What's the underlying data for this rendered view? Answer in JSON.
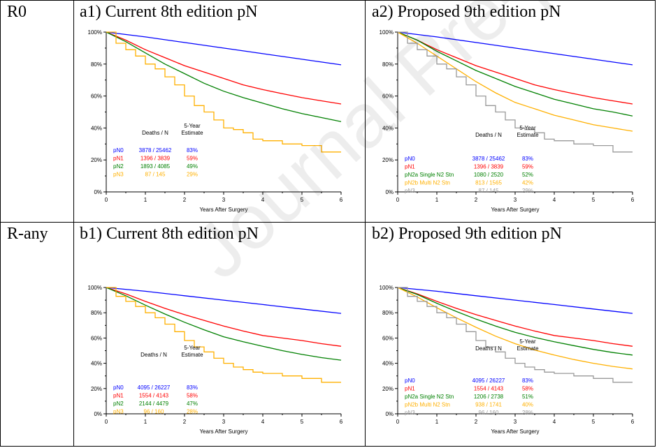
{
  "rows": [
    {
      "label": "R0"
    },
    {
      "label": "R-any"
    }
  ],
  "watermark": "Journal Pre-proof",
  "table_headers": {
    "deaths": "Deaths / N",
    "estimate_line1": "5-Year",
    "estimate_line2": "Estimate"
  },
  "colors": {
    "blue": "#0000ff",
    "red": "#ff0000",
    "green": "#008000",
    "orange": "#ffb000",
    "gray": "#999999"
  },
  "chart_data": [
    {
      "id": "a1",
      "type": "line",
      "title": "a1) Current 8th edition pN",
      "xlabel": "Years After Surgery",
      "ylabel": "",
      "xlim": [
        0,
        6
      ],
      "ylim": [
        0,
        100
      ],
      "xticks": [
        "0",
        "1",
        "2",
        "3",
        "4",
        "5",
        "6"
      ],
      "yticks": [
        "0%",
        "20%",
        "40%",
        "60%",
        "80%",
        "100%"
      ],
      "series": [
        {
          "name": "pN0",
          "color": "#0000ff",
          "deaths_n": "3878 / 25462",
          "estimate": "83%",
          "step": false,
          "x": [
            0,
            1,
            2,
            3,
            4,
            5,
            6
          ],
          "y": [
            100,
            97,
            93.5,
            90,
            86.5,
            83,
            79.5
          ]
        },
        {
          "name": "pN1",
          "color": "#ff0000",
          "deaths_n": "1396 / 3839",
          "estimate": "59%",
          "step": false,
          "x": [
            0,
            0.5,
            1,
            1.5,
            2,
            2.5,
            3,
            3.5,
            4,
            4.5,
            5,
            5.5,
            6
          ],
          "y": [
            100,
            95,
            89,
            84,
            79,
            75,
            71,
            67,
            64,
            61.5,
            59,
            57,
            55
          ]
        },
        {
          "name": "pN2",
          "color": "#008000",
          "deaths_n": "1893 / 4085",
          "estimate": "49%",
          "step": false,
          "x": [
            0,
            0.5,
            1,
            1.5,
            2,
            2.5,
            3,
            3.5,
            4,
            4.5,
            5,
            5.5,
            6
          ],
          "y": [
            100,
            94,
            87,
            80,
            74,
            68,
            63,
            59,
            55.5,
            52,
            49,
            46.5,
            44
          ]
        },
        {
          "name": "pN3",
          "color": "#ffb000",
          "deaths_n": "87 / 145",
          "estimate": "29%",
          "step": true,
          "x": [
            0,
            0.25,
            0.5,
            0.75,
            1,
            1.25,
            1.5,
            1.75,
            2,
            2.25,
            2.5,
            2.75,
            3,
            3.25,
            3.5,
            3.75,
            4,
            4.5,
            5,
            5.5,
            6
          ],
          "y": [
            100,
            93,
            89,
            85,
            80,
            77,
            72,
            67,
            60,
            54,
            50,
            45,
            40,
            39,
            37,
            33,
            32,
            30,
            29,
            25,
            25
          ]
        }
      ]
    },
    {
      "id": "a2",
      "type": "line",
      "title": "a2) Proposed 9th edition pN",
      "xlabel": "Years After Surgery",
      "ylabel": "",
      "xlim": [
        0,
        6
      ],
      "ylim": [
        0,
        100
      ],
      "xticks": [
        "0",
        "1",
        "2",
        "3",
        "4",
        "5",
        "6"
      ],
      "yticks": [
        "0%",
        "20%",
        "40%",
        "60%",
        "80%",
        "100%"
      ],
      "series": [
        {
          "name": "pN0",
          "color": "#0000ff",
          "deaths_n": "3878 / 25462",
          "estimate": "83%",
          "step": false,
          "x": [
            0,
            1,
            2,
            3,
            4,
            5,
            6
          ],
          "y": [
            100,
            97,
            93.5,
            90,
            86.5,
            83,
            79.5
          ]
        },
        {
          "name": "pN1",
          "color": "#ff0000",
          "deaths_n": "1396 / 3839",
          "estimate": "59%",
          "step": false,
          "x": [
            0,
            0.5,
            1,
            1.5,
            2,
            2.5,
            3,
            3.5,
            4,
            4.5,
            5,
            5.5,
            6
          ],
          "y": [
            100,
            95,
            89,
            84,
            79,
            75,
            71,
            67,
            64,
            61.5,
            59,
            57,
            55
          ]
        },
        {
          "name": "pN2a Single N2 Stn",
          "color": "#008000",
          "deaths_n": "1080 / 2520",
          "estimate": "52%",
          "step": false,
          "x": [
            0,
            0.5,
            1,
            1.5,
            2,
            2.5,
            3,
            3.5,
            4,
            4.5,
            5,
            5.5,
            6
          ],
          "y": [
            100,
            95,
            88,
            82,
            76,
            71,
            66,
            62,
            58,
            55,
            52,
            50,
            47.5
          ]
        },
        {
          "name": "pN2b Multi N2 Stn",
          "color": "#ffb000",
          "deaths_n": "813 / 1565",
          "estimate": "42%",
          "step": false,
          "x": [
            0,
            0.5,
            1,
            1.5,
            2,
            2.5,
            3,
            3.5,
            4,
            4.5,
            5,
            5.5,
            6
          ],
          "y": [
            100,
            93,
            85,
            77,
            69,
            62,
            56,
            52,
            48,
            45,
            42,
            40,
            38
          ]
        },
        {
          "name": "pN3",
          "color": "#999999",
          "deaths_n": "87 / 145",
          "estimate": "29%",
          "step": true,
          "x": [
            0,
            0.25,
            0.5,
            0.75,
            1,
            1.25,
            1.5,
            1.75,
            2,
            2.25,
            2.5,
            2.75,
            3,
            3.25,
            3.5,
            3.75,
            4,
            4.5,
            5,
            5.5,
            6
          ],
          "y": [
            100,
            93,
            89,
            85,
            80,
            77,
            72,
            67,
            60,
            54,
            50,
            45,
            40,
            39,
            37,
            33,
            32,
            30,
            29,
            25,
            25
          ]
        }
      ]
    },
    {
      "id": "b1",
      "type": "line",
      "title": "b1) Current 8th edition pN",
      "xlabel": "Years After Surgery",
      "ylabel": "",
      "xlim": [
        0,
        6
      ],
      "ylim": [
        0,
        100
      ],
      "xticks": [
        "0",
        "1",
        "2",
        "3",
        "4",
        "5",
        "6"
      ],
      "yticks": [
        "0%",
        "20%",
        "40%",
        "60%",
        "80%",
        "100%"
      ],
      "series": [
        {
          "name": "pN0",
          "color": "#0000ff",
          "deaths_n": "4095 / 26227",
          "estimate": "83%",
          "step": false,
          "x": [
            0,
            1,
            2,
            3,
            4,
            5,
            6
          ],
          "y": [
            100,
            97,
            93.5,
            90,
            86.5,
            83,
            79.5
          ]
        },
        {
          "name": "pN1",
          "color": "#ff0000",
          "deaths_n": "1554 / 4143",
          "estimate": "58%",
          "step": false,
          "x": [
            0,
            0.5,
            1,
            1.5,
            2,
            2.5,
            3,
            3.5,
            4,
            4.5,
            5,
            5.5,
            6
          ],
          "y": [
            100,
            95,
            89,
            83.5,
            78.5,
            74,
            69.5,
            65.5,
            62,
            60,
            58,
            55.5,
            53.5
          ]
        },
        {
          "name": "pN2",
          "color": "#008000",
          "deaths_n": "2144 / 4479",
          "estimate": "47%",
          "step": false,
          "x": [
            0,
            0.5,
            1,
            1.5,
            2,
            2.5,
            3,
            3.5,
            4,
            4.5,
            5,
            5.5,
            6
          ],
          "y": [
            100,
            93.5,
            86,
            79,
            72.5,
            66.5,
            61,
            57,
            53.5,
            50,
            47,
            44.5,
            42.5
          ]
        },
        {
          "name": "pN3",
          "color": "#ffb000",
          "deaths_n": "96 / 160",
          "estimate": "28%",
          "step": true,
          "x": [
            0,
            0.25,
            0.5,
            0.75,
            1,
            1.25,
            1.5,
            1.75,
            2,
            2.25,
            2.5,
            2.75,
            3,
            3.25,
            3.5,
            3.75,
            4,
            4.5,
            5,
            5.5,
            6
          ],
          "y": [
            100,
            93,
            89,
            85,
            80,
            76,
            71,
            65,
            58,
            53,
            49,
            44,
            40,
            37,
            35,
            33,
            32,
            30,
            28,
            25,
            25
          ]
        }
      ]
    },
    {
      "id": "b2",
      "type": "line",
      "title": "b2) Proposed 9th edition pN",
      "xlabel": "Years After Surgery",
      "ylabel": "",
      "xlim": [
        0,
        6
      ],
      "ylim": [
        0,
        100
      ],
      "xticks": [
        "0",
        "1",
        "2",
        "3",
        "4",
        "5",
        "6"
      ],
      "yticks": [
        "0%",
        "20%",
        "40%",
        "60%",
        "80%",
        "100%"
      ],
      "series": [
        {
          "name": "pN0",
          "color": "#0000ff",
          "deaths_n": "4095 / 26227",
          "estimate": "83%",
          "step": false,
          "x": [
            0,
            1,
            2,
            3,
            4,
            5,
            6
          ],
          "y": [
            100,
            97,
            93.5,
            90,
            86.5,
            83,
            79.5
          ]
        },
        {
          "name": "pN1",
          "color": "#ff0000",
          "deaths_n": "1554 / 4143",
          "estimate": "58%",
          "step": false,
          "x": [
            0,
            0.5,
            1,
            1.5,
            2,
            2.5,
            3,
            3.5,
            4,
            4.5,
            5,
            5.5,
            6
          ],
          "y": [
            100,
            95,
            89,
            83.5,
            78.5,
            74,
            69.5,
            65.5,
            62,
            60,
            58,
            55.5,
            53.5
          ]
        },
        {
          "name": "pN2a Single N2 Stn",
          "color": "#008000",
          "deaths_n": "1206 / 2738",
          "estimate": "51%",
          "step": false,
          "x": [
            0,
            0.5,
            1,
            1.5,
            2,
            2.5,
            3,
            3.5,
            4,
            4.5,
            5,
            5.5,
            6
          ],
          "y": [
            100,
            94.5,
            87.5,
            81,
            75,
            69.5,
            64.5,
            60.5,
            57,
            54,
            51,
            48.5,
            46.5
          ]
        },
        {
          "name": "pN2b Multi N2 Stn",
          "color": "#ffb000",
          "deaths_n": "938 / 1741",
          "estimate": "40%",
          "step": false,
          "x": [
            0,
            0.5,
            1,
            1.5,
            2,
            2.5,
            3,
            3.5,
            4,
            4.5,
            5,
            5.5,
            6
          ],
          "y": [
            100,
            92.5,
            84,
            76,
            68.5,
            61.5,
            55.5,
            50.5,
            46.5,
            43,
            40,
            37.5,
            35.5
          ]
        },
        {
          "name": "pN3",
          "color": "#999999",
          "deaths_n": "96 / 160",
          "estimate": "28%",
          "step": true,
          "x": [
            0,
            0.25,
            0.5,
            0.75,
            1,
            1.25,
            1.5,
            1.75,
            2,
            2.25,
            2.5,
            2.75,
            3,
            3.25,
            3.5,
            3.75,
            4,
            4.5,
            5,
            5.5,
            6
          ],
          "y": [
            100,
            93,
            89,
            85,
            80,
            76,
            71,
            65,
            58,
            53,
            49,
            44,
            40,
            37,
            35,
            33,
            32,
            30,
            28,
            25,
            25
          ]
        }
      ]
    }
  ]
}
